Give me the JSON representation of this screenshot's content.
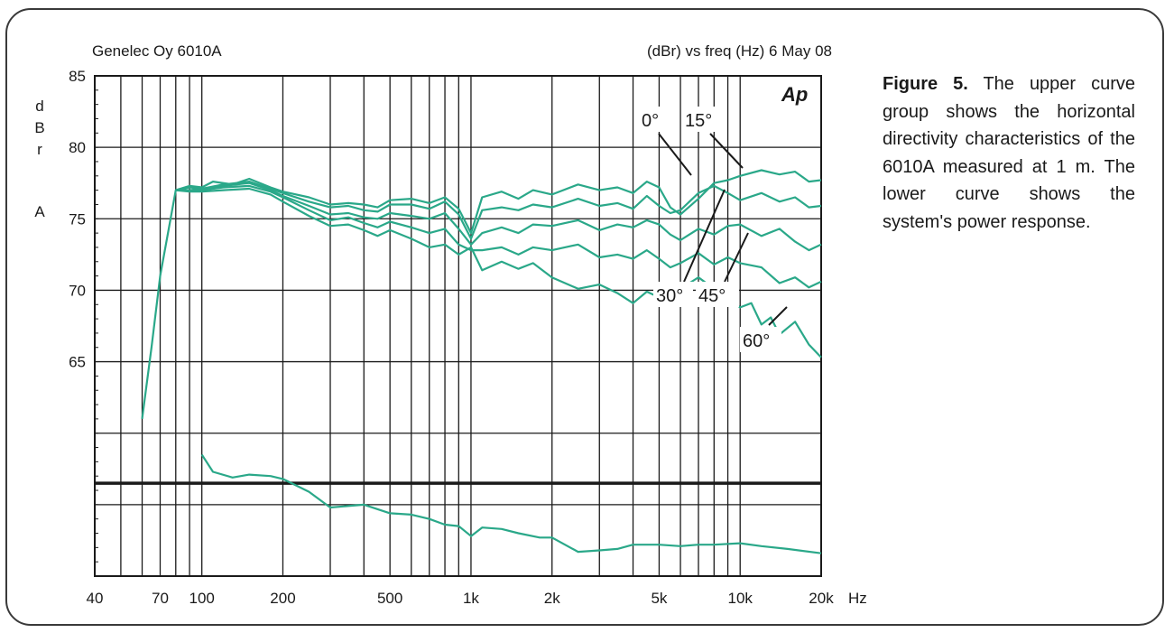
{
  "header": {
    "left": "Genelec Oy 6010A",
    "right": "(dBr) vs freq (Hz) 6 May 08"
  },
  "badge": "Ap",
  "caption": {
    "figure_label": "Figure 5.",
    "text": "The upper curve group shows the horizontal directivity characteristics of the 6010A measured at 1 m. The lower curve shows the system's power response."
  },
  "colors": {
    "curve": "#2aa889",
    "grid": "#1a1a1a"
  },
  "chart_data": {
    "type": "line",
    "title": "",
    "xscale": "log",
    "xlim": [
      40,
      20000
    ],
    "ylim": [
      50,
      85
    ],
    "xlabel": "Hz",
    "ylabel_chars": [
      "d",
      "B",
      "r",
      "",
      "A"
    ],
    "xticks": [
      {
        "value": 40,
        "label": "40"
      },
      {
        "value": 70,
        "label": "70"
      },
      {
        "value": 100,
        "label": "100"
      },
      {
        "value": 200,
        "label": "200"
      },
      {
        "value": 500,
        "label": "500"
      },
      {
        "value": 1000,
        "label": "1k"
      },
      {
        "value": 2000,
        "label": "2k"
      },
      {
        "value": 5000,
        "label": "5k"
      },
      {
        "value": 10000,
        "label": "10k"
      },
      {
        "value": 20000,
        "label": "20k"
      }
    ],
    "yticks": [
      {
        "value": 85,
        "label": "85"
      },
      {
        "value": 80,
        "label": "80"
      },
      {
        "value": 75,
        "label": "75"
      },
      {
        "value": 70,
        "label": "70"
      },
      {
        "value": 65,
        "label": "65"
      }
    ],
    "reference_line_y": 56.5,
    "annotations": [
      "0°",
      "15°",
      "30°",
      "45°",
      "60°"
    ],
    "series": [
      {
        "name": "0°",
        "points": [
          [
            60,
            61
          ],
          [
            65,
            66
          ],
          [
            70,
            71
          ],
          [
            80,
            77
          ],
          [
            90,
            77.3
          ],
          [
            100,
            77.2
          ],
          [
            110,
            77.6
          ],
          [
            130,
            77.4
          ],
          [
            150,
            77.8
          ],
          [
            180,
            77.2
          ],
          [
            200,
            76.9
          ],
          [
            250,
            76.5
          ],
          [
            300,
            76.0
          ],
          [
            350,
            76.1
          ],
          [
            400,
            76.0
          ],
          [
            450,
            75.8
          ],
          [
            500,
            76.3
          ],
          [
            600,
            76.4
          ],
          [
            700,
            76.1
          ],
          [
            800,
            76.5
          ],
          [
            900,
            75.7
          ],
          [
            1000,
            74.0
          ],
          [
            1100,
            76.5
          ],
          [
            1300,
            76.9
          ],
          [
            1500,
            76.4
          ],
          [
            1700,
            77.0
          ],
          [
            2000,
            76.7
          ],
          [
            2500,
            77.4
          ],
          [
            3000,
            77.0
          ],
          [
            3500,
            77.2
          ],
          [
            4000,
            76.8
          ],
          [
            4500,
            77.6
          ],
          [
            5000,
            77.2
          ],
          [
            5500,
            75.8
          ],
          [
            6000,
            75.3
          ],
          [
            7000,
            76.4
          ],
          [
            8000,
            77.5
          ],
          [
            9000,
            77.7
          ],
          [
            10000,
            78.0
          ],
          [
            12000,
            78.4
          ],
          [
            14000,
            78.1
          ],
          [
            16000,
            78.3
          ],
          [
            18000,
            77.6
          ],
          [
            20000,
            77.7
          ]
        ]
      },
      {
        "name": "15°",
        "points": [
          [
            80,
            77
          ],
          [
            90,
            77.2
          ],
          [
            100,
            77.1
          ],
          [
            120,
            77.4
          ],
          [
            150,
            77.6
          ],
          [
            180,
            77.1
          ],
          [
            200,
            76.8
          ],
          [
            250,
            76.2
          ],
          [
            300,
            75.8
          ],
          [
            350,
            75.9
          ],
          [
            400,
            75.6
          ],
          [
            450,
            75.5
          ],
          [
            500,
            76.0
          ],
          [
            600,
            76.0
          ],
          [
            700,
            75.7
          ],
          [
            800,
            76.2
          ],
          [
            900,
            75.3
          ],
          [
            1000,
            73.6
          ],
          [
            1100,
            75.6
          ],
          [
            1300,
            75.8
          ],
          [
            1500,
            75.6
          ],
          [
            1700,
            76.0
          ],
          [
            2000,
            75.8
          ],
          [
            2500,
            76.4
          ],
          [
            3000,
            75.9
          ],
          [
            3500,
            76.1
          ],
          [
            4000,
            75.7
          ],
          [
            4500,
            76.6
          ],
          [
            5000,
            75.9
          ],
          [
            5500,
            75.4
          ],
          [
            6000,
            75.6
          ],
          [
            7000,
            76.8
          ],
          [
            8000,
            77.3
          ],
          [
            9000,
            76.8
          ],
          [
            10000,
            76.3
          ],
          [
            12000,
            76.8
          ],
          [
            14000,
            76.2
          ],
          [
            16000,
            76.5
          ],
          [
            18000,
            75.8
          ],
          [
            20000,
            75.9
          ]
        ]
      },
      {
        "name": "30°",
        "points": [
          [
            80,
            77
          ],
          [
            90,
            77.0
          ],
          [
            100,
            77.1
          ],
          [
            120,
            77.3
          ],
          [
            150,
            77.5
          ],
          [
            180,
            77.0
          ],
          [
            200,
            76.6
          ],
          [
            250,
            75.9
          ],
          [
            300,
            75.3
          ],
          [
            350,
            75.4
          ],
          [
            400,
            75.1
          ],
          [
            450,
            75.0
          ],
          [
            500,
            75.4
          ],
          [
            600,
            75.2
          ],
          [
            700,
            75.0
          ],
          [
            800,
            75.4
          ],
          [
            900,
            74.3
          ],
          [
            1000,
            73.2
          ],
          [
            1100,
            74.0
          ],
          [
            1300,
            74.4
          ],
          [
            1500,
            74.0
          ],
          [
            1700,
            74.6
          ],
          [
            2000,
            74.5
          ],
          [
            2500,
            74.9
          ],
          [
            3000,
            74.2
          ],
          [
            3500,
            74.6
          ],
          [
            4000,
            74.4
          ],
          [
            4500,
            74.9
          ],
          [
            5000,
            74.6
          ],
          [
            5500,
            73.9
          ],
          [
            6000,
            73.5
          ],
          [
            7000,
            74.3
          ],
          [
            8000,
            73.9
          ],
          [
            9000,
            74.5
          ],
          [
            10000,
            74.6
          ],
          [
            12000,
            73.8
          ],
          [
            14000,
            74.3
          ],
          [
            16000,
            73.4
          ],
          [
            18000,
            72.8
          ],
          [
            20000,
            73.2
          ]
        ]
      },
      {
        "name": "45°",
        "points": [
          [
            80,
            77
          ],
          [
            90,
            77.0
          ],
          [
            100,
            77.0
          ],
          [
            120,
            77.2
          ],
          [
            150,
            77.3
          ],
          [
            180,
            76.9
          ],
          [
            200,
            76.5
          ],
          [
            250,
            75.6
          ],
          [
            300,
            74.9
          ],
          [
            350,
            75.1
          ],
          [
            400,
            74.7
          ],
          [
            450,
            74.4
          ],
          [
            500,
            74.8
          ],
          [
            600,
            74.4
          ],
          [
            700,
            74.0
          ],
          [
            800,
            74.3
          ],
          [
            900,
            73.2
          ],
          [
            1000,
            72.8
          ],
          [
            1100,
            72.8
          ],
          [
            1300,
            73.0
          ],
          [
            1500,
            72.5
          ],
          [
            1700,
            73.0
          ],
          [
            2000,
            72.8
          ],
          [
            2500,
            73.2
          ],
          [
            3000,
            72.3
          ],
          [
            3500,
            72.5
          ],
          [
            4000,
            72.2
          ],
          [
            4500,
            72.8
          ],
          [
            5000,
            72.2
          ],
          [
            5500,
            71.6
          ],
          [
            6000,
            71.9
          ],
          [
            7000,
            72.6
          ],
          [
            8000,
            71.8
          ],
          [
            9000,
            72.3
          ],
          [
            10000,
            71.9
          ],
          [
            12000,
            71.6
          ],
          [
            14000,
            70.5
          ],
          [
            16000,
            70.9
          ],
          [
            18000,
            70.2
          ],
          [
            20000,
            70.6
          ]
        ]
      },
      {
        "name": "60°",
        "points": [
          [
            80,
            77
          ],
          [
            90,
            76.9
          ],
          [
            100,
            76.9
          ],
          [
            120,
            77.0
          ],
          [
            150,
            77.1
          ],
          [
            180,
            76.7
          ],
          [
            200,
            76.2
          ],
          [
            250,
            75.2
          ],
          [
            300,
            74.5
          ],
          [
            350,
            74.6
          ],
          [
            400,
            74.2
          ],
          [
            450,
            73.8
          ],
          [
            500,
            74.2
          ],
          [
            600,
            73.6
          ],
          [
            700,
            73.0
          ],
          [
            800,
            73.2
          ],
          [
            900,
            72.5
          ],
          [
            1000,
            73.0
          ],
          [
            1100,
            71.4
          ],
          [
            1300,
            72.0
          ],
          [
            1500,
            71.5
          ],
          [
            1700,
            71.9
          ],
          [
            2000,
            70.9
          ],
          [
            2500,
            70.1
          ],
          [
            3000,
            70.4
          ],
          [
            3500,
            69.8
          ],
          [
            4000,
            69.1
          ],
          [
            4500,
            69.9
          ],
          [
            5000,
            69.5
          ],
          [
            5500,
            69.9
          ],
          [
            6000,
            70.1
          ],
          [
            7000,
            70.9
          ],
          [
            8000,
            70.1
          ],
          [
            9000,
            69.4
          ],
          [
            10000,
            68.8
          ],
          [
            11000,
            69.1
          ],
          [
            12000,
            67.6
          ],
          [
            13000,
            68.1
          ],
          [
            14000,
            66.9
          ],
          [
            16000,
            67.8
          ],
          [
            18000,
            66.2
          ],
          [
            20000,
            65.3
          ]
        ]
      },
      {
        "name": "power",
        "points": [
          [
            100,
            58.5
          ],
          [
            110,
            57.3
          ],
          [
            130,
            56.9
          ],
          [
            150,
            57.1
          ],
          [
            180,
            57.0
          ],
          [
            200,
            56.8
          ],
          [
            250,
            55.9
          ],
          [
            300,
            54.8
          ],
          [
            400,
            55.0
          ],
          [
            500,
            54.4
          ],
          [
            600,
            54.3
          ],
          [
            700,
            54.0
          ],
          [
            800,
            53.6
          ],
          [
            900,
            53.5
          ],
          [
            1000,
            52.8
          ],
          [
            1100,
            53.4
          ],
          [
            1300,
            53.3
          ],
          [
            1500,
            53.0
          ],
          [
            1800,
            52.7
          ],
          [
            2000,
            52.7
          ],
          [
            2500,
            51.7
          ],
          [
            3000,
            51.8
          ],
          [
            3500,
            51.9
          ],
          [
            4000,
            52.2
          ],
          [
            5000,
            52.2
          ],
          [
            6000,
            52.1
          ],
          [
            7000,
            52.2
          ],
          [
            8000,
            52.2
          ],
          [
            10000,
            52.3
          ],
          [
            12000,
            52.1
          ],
          [
            15000,
            51.9
          ],
          [
            20000,
            51.6
          ]
        ]
      }
    ]
  }
}
